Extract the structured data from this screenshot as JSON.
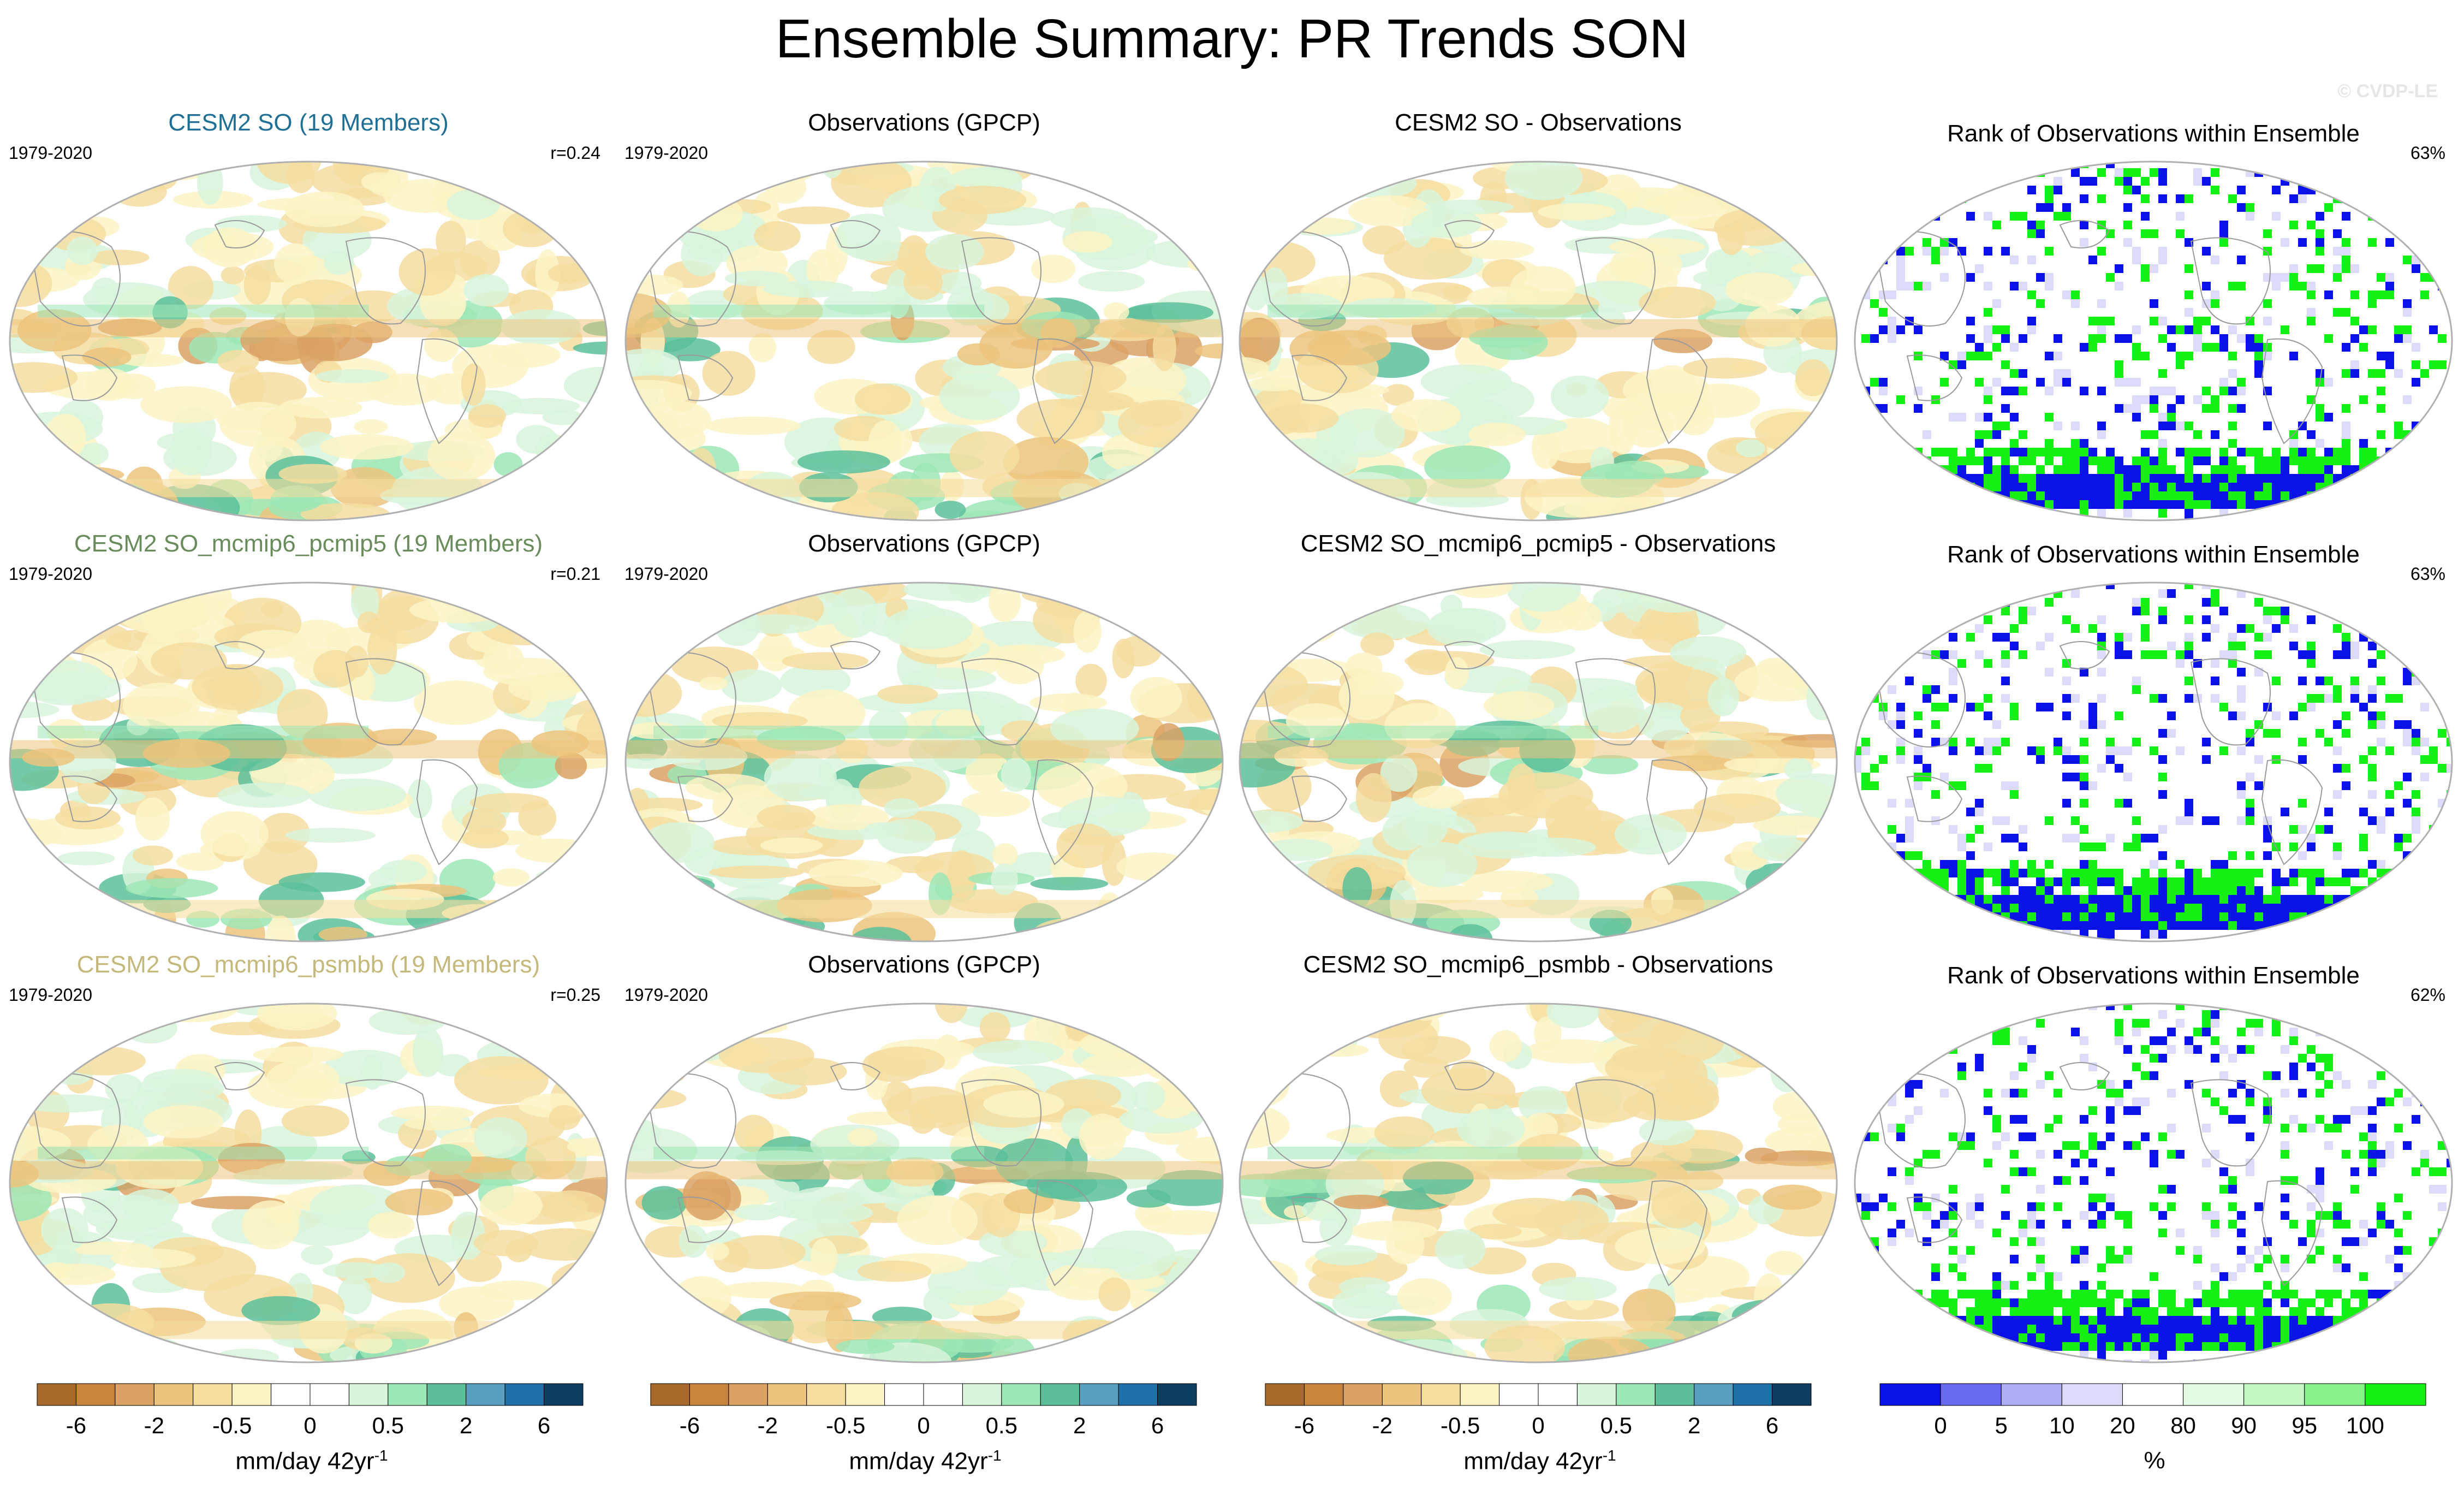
{
  "title": "Ensemble Summary: PR Trends SON",
  "watermark": "© CVDP-LE",
  "panels": [
    {
      "row": 0,
      "col": 0,
      "kind": "trend",
      "title": "CESM2 SO (19 Members)",
      "title_color": "#1f6f96",
      "period": "1979-2020",
      "stat": "r=0.24"
    },
    {
      "row": 0,
      "col": 1,
      "kind": "trend",
      "title": "Observations (GPCP)",
      "title_color": "#000000",
      "period": "1979-2020",
      "stat": ""
    },
    {
      "row": 0,
      "col": 2,
      "kind": "trend",
      "title": "CESM2 SO - Observations",
      "title_color": "#000000",
      "period": "",
      "stat": ""
    },
    {
      "row": 0,
      "col": 3,
      "kind": "rank",
      "title": "Rank of Observations within Ensemble",
      "title_color": "#000000",
      "period": "",
      "stat": "63%"
    },
    {
      "row": 1,
      "col": 0,
      "kind": "trend",
      "title": "CESM2 SO_mcmip6_pcmip5 (19 Members)",
      "title_color": "#6a8c5c",
      "period": "1979-2020",
      "stat": "r=0.21"
    },
    {
      "row": 1,
      "col": 1,
      "kind": "trend",
      "title": "Observations (GPCP)",
      "title_color": "#000000",
      "period": "1979-2020",
      "stat": ""
    },
    {
      "row": 1,
      "col": 2,
      "kind": "trend",
      "title": "CESM2 SO_mcmip6_pcmip5 - Observations",
      "title_color": "#000000",
      "period": "",
      "stat": ""
    },
    {
      "row": 1,
      "col": 3,
      "kind": "rank",
      "title": "Rank of Observations within Ensemble",
      "title_color": "#000000",
      "period": "",
      "stat": "63%"
    },
    {
      "row": 2,
      "col": 0,
      "kind": "trend",
      "title": "CESM2 SO_mcmip6_psmbb (19 Members)",
      "title_color": "#c4b87a",
      "period": "1979-2020",
      "stat": "r=0.25"
    },
    {
      "row": 2,
      "col": 1,
      "kind": "trend",
      "title": "Observations (GPCP)",
      "title_color": "#000000",
      "period": "1979-2020",
      "stat": ""
    },
    {
      "row": 2,
      "col": 2,
      "kind": "trend",
      "title": "CESM2 SO_mcmip6_psmbb - Observations",
      "title_color": "#000000",
      "period": "",
      "stat": ""
    },
    {
      "row": 2,
      "col": 3,
      "kind": "rank",
      "title": "Rank of Observations within Ensemble",
      "title_color": "#000000",
      "period": "",
      "stat": "62%"
    }
  ],
  "colorbars": {
    "trend": {
      "colors": [
        "#a86a2a",
        "#c7843c",
        "#dba265",
        "#ecc47e",
        "#f5dda0",
        "#fcf3c4",
        "#ffffff",
        "#ffffff",
        "#d8f5dc",
        "#9de6b6",
        "#5cbf9a",
        "#5a9fc0",
        "#1f70a8",
        "#0d3d60"
      ],
      "tick_labels": [
        "-6",
        "-2",
        "-0.5",
        "0",
        "0.5",
        "2",
        "6"
      ],
      "tick_boundaries": [
        1,
        3,
        5,
        7,
        9,
        11,
        13
      ],
      "units": "mm/day 42yr",
      "units_sup": "-1"
    },
    "rank": {
      "colors": [
        "#0a12e8",
        "#6a6af0",
        "#aeaef6",
        "#dcdcfa",
        "#ffffff",
        "#e4fae4",
        "#c4f7c4",
        "#8af28a",
        "#14f014"
      ],
      "tick_labels": [
        "0",
        "5",
        "10",
        "20",
        "80",
        "90",
        "95",
        "100"
      ],
      "tick_boundaries": [
        1,
        2,
        3,
        4,
        5,
        6,
        7,
        8
      ],
      "units": "%"
    }
  },
  "chart_data": [
    {
      "type": "heatmap",
      "title": "CESM2 SO (19 Members)",
      "period": "1979-2020",
      "r": 0.24,
      "variable": "PR trend SON",
      "units": "mm/day 42yr-1",
      "levels": [
        -6,
        -4,
        -2,
        -1,
        -0.5,
        -0.2,
        0,
        0.2,
        0.5,
        1,
        2,
        4,
        6
      ]
    },
    {
      "type": "heatmap",
      "title": "Observations (GPCP)",
      "period": "1979-2020",
      "units": "mm/day 42yr-1"
    },
    {
      "type": "heatmap",
      "title": "CESM2 SO - Observations",
      "units": "mm/day 42yr-1"
    },
    {
      "type": "heatmap",
      "title": "Rank of Observations within Ensemble",
      "pct": 63,
      "units": "%",
      "levels": [
        0,
        5,
        10,
        20,
        80,
        90,
        95,
        100
      ]
    },
    {
      "type": "heatmap",
      "title": "CESM2 SO_mcmip6_pcmip5 (19 Members)",
      "period": "1979-2020",
      "r": 0.21,
      "units": "mm/day 42yr-1"
    },
    {
      "type": "heatmap",
      "title": "Observations (GPCP)",
      "period": "1979-2020",
      "units": "mm/day 42yr-1"
    },
    {
      "type": "heatmap",
      "title": "CESM2 SO_mcmip6_pcmip5 - Observations",
      "units": "mm/day 42yr-1"
    },
    {
      "type": "heatmap",
      "title": "Rank of Observations within Ensemble",
      "pct": 63,
      "units": "%"
    },
    {
      "type": "heatmap",
      "title": "CESM2 SO_mcmip6_psmbb (19 Members)",
      "period": "1979-2020",
      "r": 0.25,
      "units": "mm/day 42yr-1"
    },
    {
      "type": "heatmap",
      "title": "Observations (GPCP)",
      "period": "1979-2020",
      "units": "mm/day 42yr-1"
    },
    {
      "type": "heatmap",
      "title": "CESM2 SO_mcmip6_psmbb - Observations",
      "units": "mm/day 42yr-1"
    },
    {
      "type": "heatmap",
      "title": "Rank of Observations within Ensemble",
      "pct": 62,
      "units": "%"
    }
  ]
}
